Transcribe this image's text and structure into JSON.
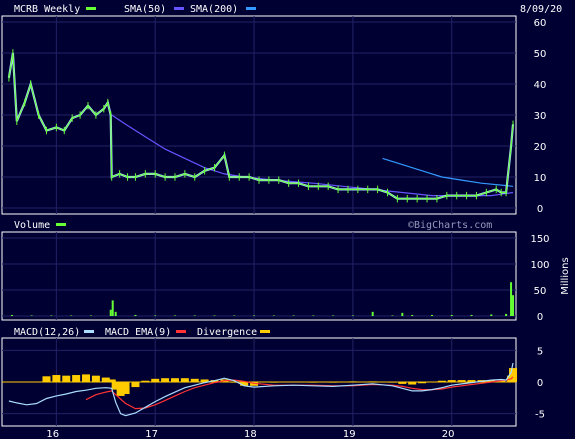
{
  "header": {
    "date": "8/09/20",
    "watermark": "©BigCharts.com"
  },
  "colors": {
    "background": "#000033",
    "price": "#66ff33",
    "price_hl": "#aaddff",
    "sma50": "#6655ff",
    "sma200": "#3399ff",
    "volume": "#66ff33",
    "macd": "#aaddff",
    "macd_ema": "#ff3333",
    "divergence": "#ffcc00",
    "grid": "#222266"
  },
  "chart_data": [
    {
      "type": "line",
      "title": "MCRB Weekly",
      "legend": [
        {
          "name": "MCRB Weekly",
          "color": "#66ff33"
        },
        {
          "name": "SMA(50)",
          "color": "#6655ff"
        },
        {
          "name": "SMA(200)",
          "color": "#3399ff"
        }
      ],
      "ylim": [
        0,
        60
      ],
      "yticks": [
        0,
        10,
        20,
        30,
        40,
        50,
        60
      ],
      "x_ticks": [
        "16",
        "17",
        "18",
        "19",
        "20"
      ],
      "price": [
        [
          2015.52,
          42
        ],
        [
          2015.56,
          50
        ],
        [
          2015.6,
          28
        ],
        [
          2015.68,
          34
        ],
        [
          2015.74,
          40
        ],
        [
          2015.82,
          30
        ],
        [
          2015.9,
          25
        ],
        [
          2016.0,
          26
        ],
        [
          2016.08,
          25
        ],
        [
          2016.16,
          29
        ],
        [
          2016.24,
          30
        ],
        [
          2016.32,
          33
        ],
        [
          2016.4,
          30
        ],
        [
          2016.48,
          32
        ],
        [
          2016.52,
          34
        ],
        [
          2016.55,
          30
        ],
        [
          2016.56,
          10
        ],
        [
          2016.64,
          11
        ],
        [
          2016.72,
          10
        ],
        [
          2016.8,
          10
        ],
        [
          2016.9,
          11
        ],
        [
          2017.0,
          11
        ],
        [
          2017.1,
          10
        ],
        [
          2017.2,
          10
        ],
        [
          2017.3,
          11
        ],
        [
          2017.4,
          10
        ],
        [
          2017.5,
          12
        ],
        [
          2017.6,
          13
        ],
        [
          2017.7,
          17
        ],
        [
          2017.75,
          10
        ],
        [
          2017.85,
          10
        ],
        [
          2017.95,
          10
        ],
        [
          2018.05,
          9
        ],
        [
          2018.15,
          9
        ],
        [
          2018.25,
          9
        ],
        [
          2018.35,
          8
        ],
        [
          2018.45,
          8
        ],
        [
          2018.55,
          7
        ],
        [
          2018.65,
          7
        ],
        [
          2018.75,
          7
        ],
        [
          2018.85,
          6
        ],
        [
          2018.95,
          6
        ],
        [
          2019.05,
          6
        ],
        [
          2019.15,
          6
        ],
        [
          2019.25,
          6
        ],
        [
          2019.35,
          5
        ],
        [
          2019.45,
          3
        ],
        [
          2019.55,
          3
        ],
        [
          2019.65,
          3
        ],
        [
          2019.75,
          3
        ],
        [
          2019.85,
          3
        ],
        [
          2019.95,
          4
        ],
        [
          2020.05,
          4
        ],
        [
          2020.15,
          4
        ],
        [
          2020.25,
          4
        ],
        [
          2020.35,
          5
        ],
        [
          2020.45,
          6
        ],
        [
          2020.5,
          5
        ],
        [
          2020.55,
          5
        ],
        [
          2020.6,
          20
        ],
        [
          2020.62,
          27
        ]
      ],
      "sma50": [
        [
          2016.56,
          30
        ],
        [
          2016.7,
          27
        ],
        [
          2016.9,
          23
        ],
        [
          2017.1,
          19
        ],
        [
          2017.3,
          16
        ],
        [
          2017.5,
          13
        ],
        [
          2017.7,
          11
        ],
        [
          2017.9,
          10
        ],
        [
          2018.2,
          9
        ],
        [
          2018.6,
          8
        ],
        [
          2018.9,
          7
        ],
        [
          2019.2,
          6
        ],
        [
          2019.5,
          5
        ],
        [
          2019.8,
          4
        ],
        [
          2020.1,
          4
        ],
        [
          2020.4,
          4
        ],
        [
          2020.62,
          5
        ]
      ],
      "sma200": [
        [
          2019.3,
          16
        ],
        [
          2019.5,
          14
        ],
        [
          2019.7,
          12
        ],
        [
          2019.9,
          10
        ],
        [
          2020.1,
          9
        ],
        [
          2020.3,
          8
        ],
        [
          2020.62,
          7
        ]
      ]
    },
    {
      "type": "bar",
      "title": "Volume",
      "ylabel": "Millions",
      "ylim": [
        0,
        150
      ],
      "yticks": [
        0,
        50,
        100,
        150
      ],
      "volume": [
        [
          2015.55,
          2
        ],
        [
          2015.75,
          1
        ],
        [
          2015.95,
          1
        ],
        [
          2016.15,
          1
        ],
        [
          2016.35,
          1
        ],
        [
          2016.55,
          12
        ],
        [
          2016.57,
          30
        ],
        [
          2016.6,
          8
        ],
        [
          2016.8,
          2
        ],
        [
          2017.0,
          1
        ],
        [
          2017.2,
          1
        ],
        [
          2017.4,
          1
        ],
        [
          2017.6,
          1
        ],
        [
          2017.8,
          1
        ],
        [
          2018.0,
          1
        ],
        [
          2018.2,
          1
        ],
        [
          2018.4,
          1
        ],
        [
          2018.6,
          1
        ],
        [
          2018.8,
          1
        ],
        [
          2019.0,
          1
        ],
        [
          2019.2,
          8
        ],
        [
          2019.4,
          1
        ],
        [
          2019.5,
          6
        ],
        [
          2019.6,
          2
        ],
        [
          2019.8,
          2
        ],
        [
          2020.0,
          2
        ],
        [
          2020.2,
          2
        ],
        [
          2020.4,
          3
        ],
        [
          2020.55,
          4
        ],
        [
          2020.6,
          65
        ],
        [
          2020.62,
          40
        ]
      ]
    },
    {
      "type": "line",
      "title": "MACD(12,26)",
      "legend": [
        {
          "name": "MACD(12,26)",
          "color": "#aaddff"
        },
        {
          "name": "MACD EMA(9)",
          "color": "#ff3333"
        },
        {
          "name": "Divergence",
          "color": "#ffcc00"
        }
      ],
      "ylim": [
        -6,
        6
      ],
      "yticks": [
        -5,
        0,
        5
      ],
      "macd": [
        [
          2015.52,
          -3
        ],
        [
          2015.6,
          -3.3
        ],
        [
          2015.7,
          -3.6
        ],
        [
          2015.8,
          -3.4
        ],
        [
          2015.9,
          -2.6
        ],
        [
          2016.0,
          -2.2
        ],
        [
          2016.1,
          -1.9
        ],
        [
          2016.2,
          -1.5
        ],
        [
          2016.3,
          -1.3
        ],
        [
          2016.4,
          -1.0
        ],
        [
          2016.5,
          -0.9
        ],
        [
          2016.56,
          -1.0
        ],
        [
          2016.6,
          -3.2
        ],
        [
          2016.65,
          -5.0
        ],
        [
          2016.7,
          -5.3
        ],
        [
          2016.8,
          -4.9
        ],
        [
          2016.9,
          -4.0
        ],
        [
          2017.0,
          -3.1
        ],
        [
          2017.1,
          -2.3
        ],
        [
          2017.2,
          -1.6
        ],
        [
          2017.3,
          -0.9
        ],
        [
          2017.4,
          -0.5
        ],
        [
          2017.5,
          -0.1
        ],
        [
          2017.6,
          0.2
        ],
        [
          2017.7,
          0.6
        ],
        [
          2017.8,
          0.2
        ],
        [
          2017.9,
          -0.6
        ],
        [
          2018.0,
          -0.8
        ],
        [
          2018.2,
          -0.6
        ],
        [
          2018.4,
          -0.5
        ],
        [
          2018.6,
          -0.6
        ],
        [
          2018.8,
          -0.7
        ],
        [
          2019.0,
          -0.5
        ],
        [
          2019.2,
          -0.3
        ],
        [
          2019.4,
          -0.6
        ],
        [
          2019.5,
          -1.0
        ],
        [
          2019.6,
          -1.4
        ],
        [
          2019.7,
          -1.4
        ],
        [
          2019.8,
          -1.2
        ],
        [
          2019.9,
          -0.9
        ],
        [
          2020.0,
          -0.5
        ],
        [
          2020.1,
          -0.3
        ],
        [
          2020.2,
          -0.1
        ],
        [
          2020.3,
          0.1
        ],
        [
          2020.4,
          0.3
        ],
        [
          2020.5,
          0.4
        ],
        [
          2020.55,
          0.3
        ],
        [
          2020.6,
          1.5
        ],
        [
          2020.62,
          3.0
        ]
      ],
      "macd_ema": [
        [
          2016.3,
          -2.8
        ],
        [
          2016.4,
          -2.0
        ],
        [
          2016.5,
          -1.6
        ],
        [
          2016.56,
          -1.4
        ],
        [
          2016.6,
          -2.0
        ],
        [
          2016.7,
          -3.4
        ],
        [
          2016.8,
          -4.2
        ],
        [
          2016.9,
          -4.1
        ],
        [
          2017.0,
          -3.6
        ],
        [
          2017.1,
          -2.9
        ],
        [
          2017.2,
          -2.2
        ],
        [
          2017.3,
          -1.5
        ],
        [
          2017.4,
          -0.9
        ],
        [
          2017.5,
          -0.5
        ],
        [
          2017.6,
          -0.1
        ],
        [
          2017.7,
          0.2
        ],
        [
          2017.8,
          0.3
        ],
        [
          2017.9,
          0.1
        ],
        [
          2018.0,
          -0.2
        ],
        [
          2018.2,
          -0.5
        ],
        [
          2018.4,
          -0.5
        ],
        [
          2018.6,
          -0.5
        ],
        [
          2018.8,
          -0.6
        ],
        [
          2019.0,
          -0.6
        ],
        [
          2019.2,
          -0.4
        ],
        [
          2019.4,
          -0.5
        ],
        [
          2019.5,
          -0.7
        ],
        [
          2019.6,
          -1.0
        ],
        [
          2019.7,
          -1.2
        ],
        [
          2019.8,
          -1.2
        ],
        [
          2019.9,
          -1.1
        ],
        [
          2020.0,
          -0.8
        ],
        [
          2020.1,
          -0.6
        ],
        [
          2020.2,
          -0.4
        ],
        [
          2020.3,
          -0.2
        ],
        [
          2020.4,
          0.0
        ],
        [
          2020.5,
          0.2
        ],
        [
          2020.55,
          0.3
        ],
        [
          2020.6,
          0.5
        ],
        [
          2020.62,
          0.8
        ]
      ],
      "divergence": [
        [
          2015.9,
          0.9
        ],
        [
          2016.0,
          1.1
        ],
        [
          2016.1,
          1.0
        ],
        [
          2016.2,
          1.1
        ],
        [
          2016.3,
          1.2
        ],
        [
          2016.4,
          1.0
        ],
        [
          2016.5,
          0.7
        ],
        [
          2016.56,
          0.4
        ],
        [
          2016.6,
          -1.2
        ],
        [
          2016.65,
          -2.2
        ],
        [
          2016.7,
          -1.9
        ],
        [
          2016.8,
          -0.8
        ],
        [
          2016.9,
          0.2
        ],
        [
          2017.0,
          0.5
        ],
        [
          2017.1,
          0.6
        ],
        [
          2017.2,
          0.6
        ],
        [
          2017.3,
          0.6
        ],
        [
          2017.4,
          0.5
        ],
        [
          2017.5,
          0.4
        ],
        [
          2017.6,
          0.3
        ],
        [
          2017.7,
          0.4
        ],
        [
          2017.8,
          -0.1
        ],
        [
          2017.9,
          -0.6
        ],
        [
          2018.0,
          -0.6
        ],
        [
          2018.2,
          -0.1
        ],
        [
          2018.4,
          0.0
        ],
        [
          2018.6,
          -0.1
        ],
        [
          2018.8,
          -0.1
        ],
        [
          2019.0,
          0.1
        ],
        [
          2019.2,
          0.1
        ],
        [
          2019.4,
          -0.1
        ],
        [
          2019.5,
          -0.3
        ],
        [
          2019.6,
          -0.4
        ],
        [
          2019.7,
          -0.2
        ],
        [
          2019.8,
          0.0
        ],
        [
          2019.9,
          0.2
        ],
        [
          2020.0,
          0.3
        ],
        [
          2020.1,
          0.3
        ],
        [
          2020.2,
          0.3
        ],
        [
          2020.3,
          0.3
        ],
        [
          2020.4,
          0.3
        ],
        [
          2020.5,
          0.2
        ],
        [
          2020.55,
          0.0
        ],
        [
          2020.6,
          1.0
        ],
        [
          2020.62,
          2.2
        ]
      ]
    }
  ]
}
